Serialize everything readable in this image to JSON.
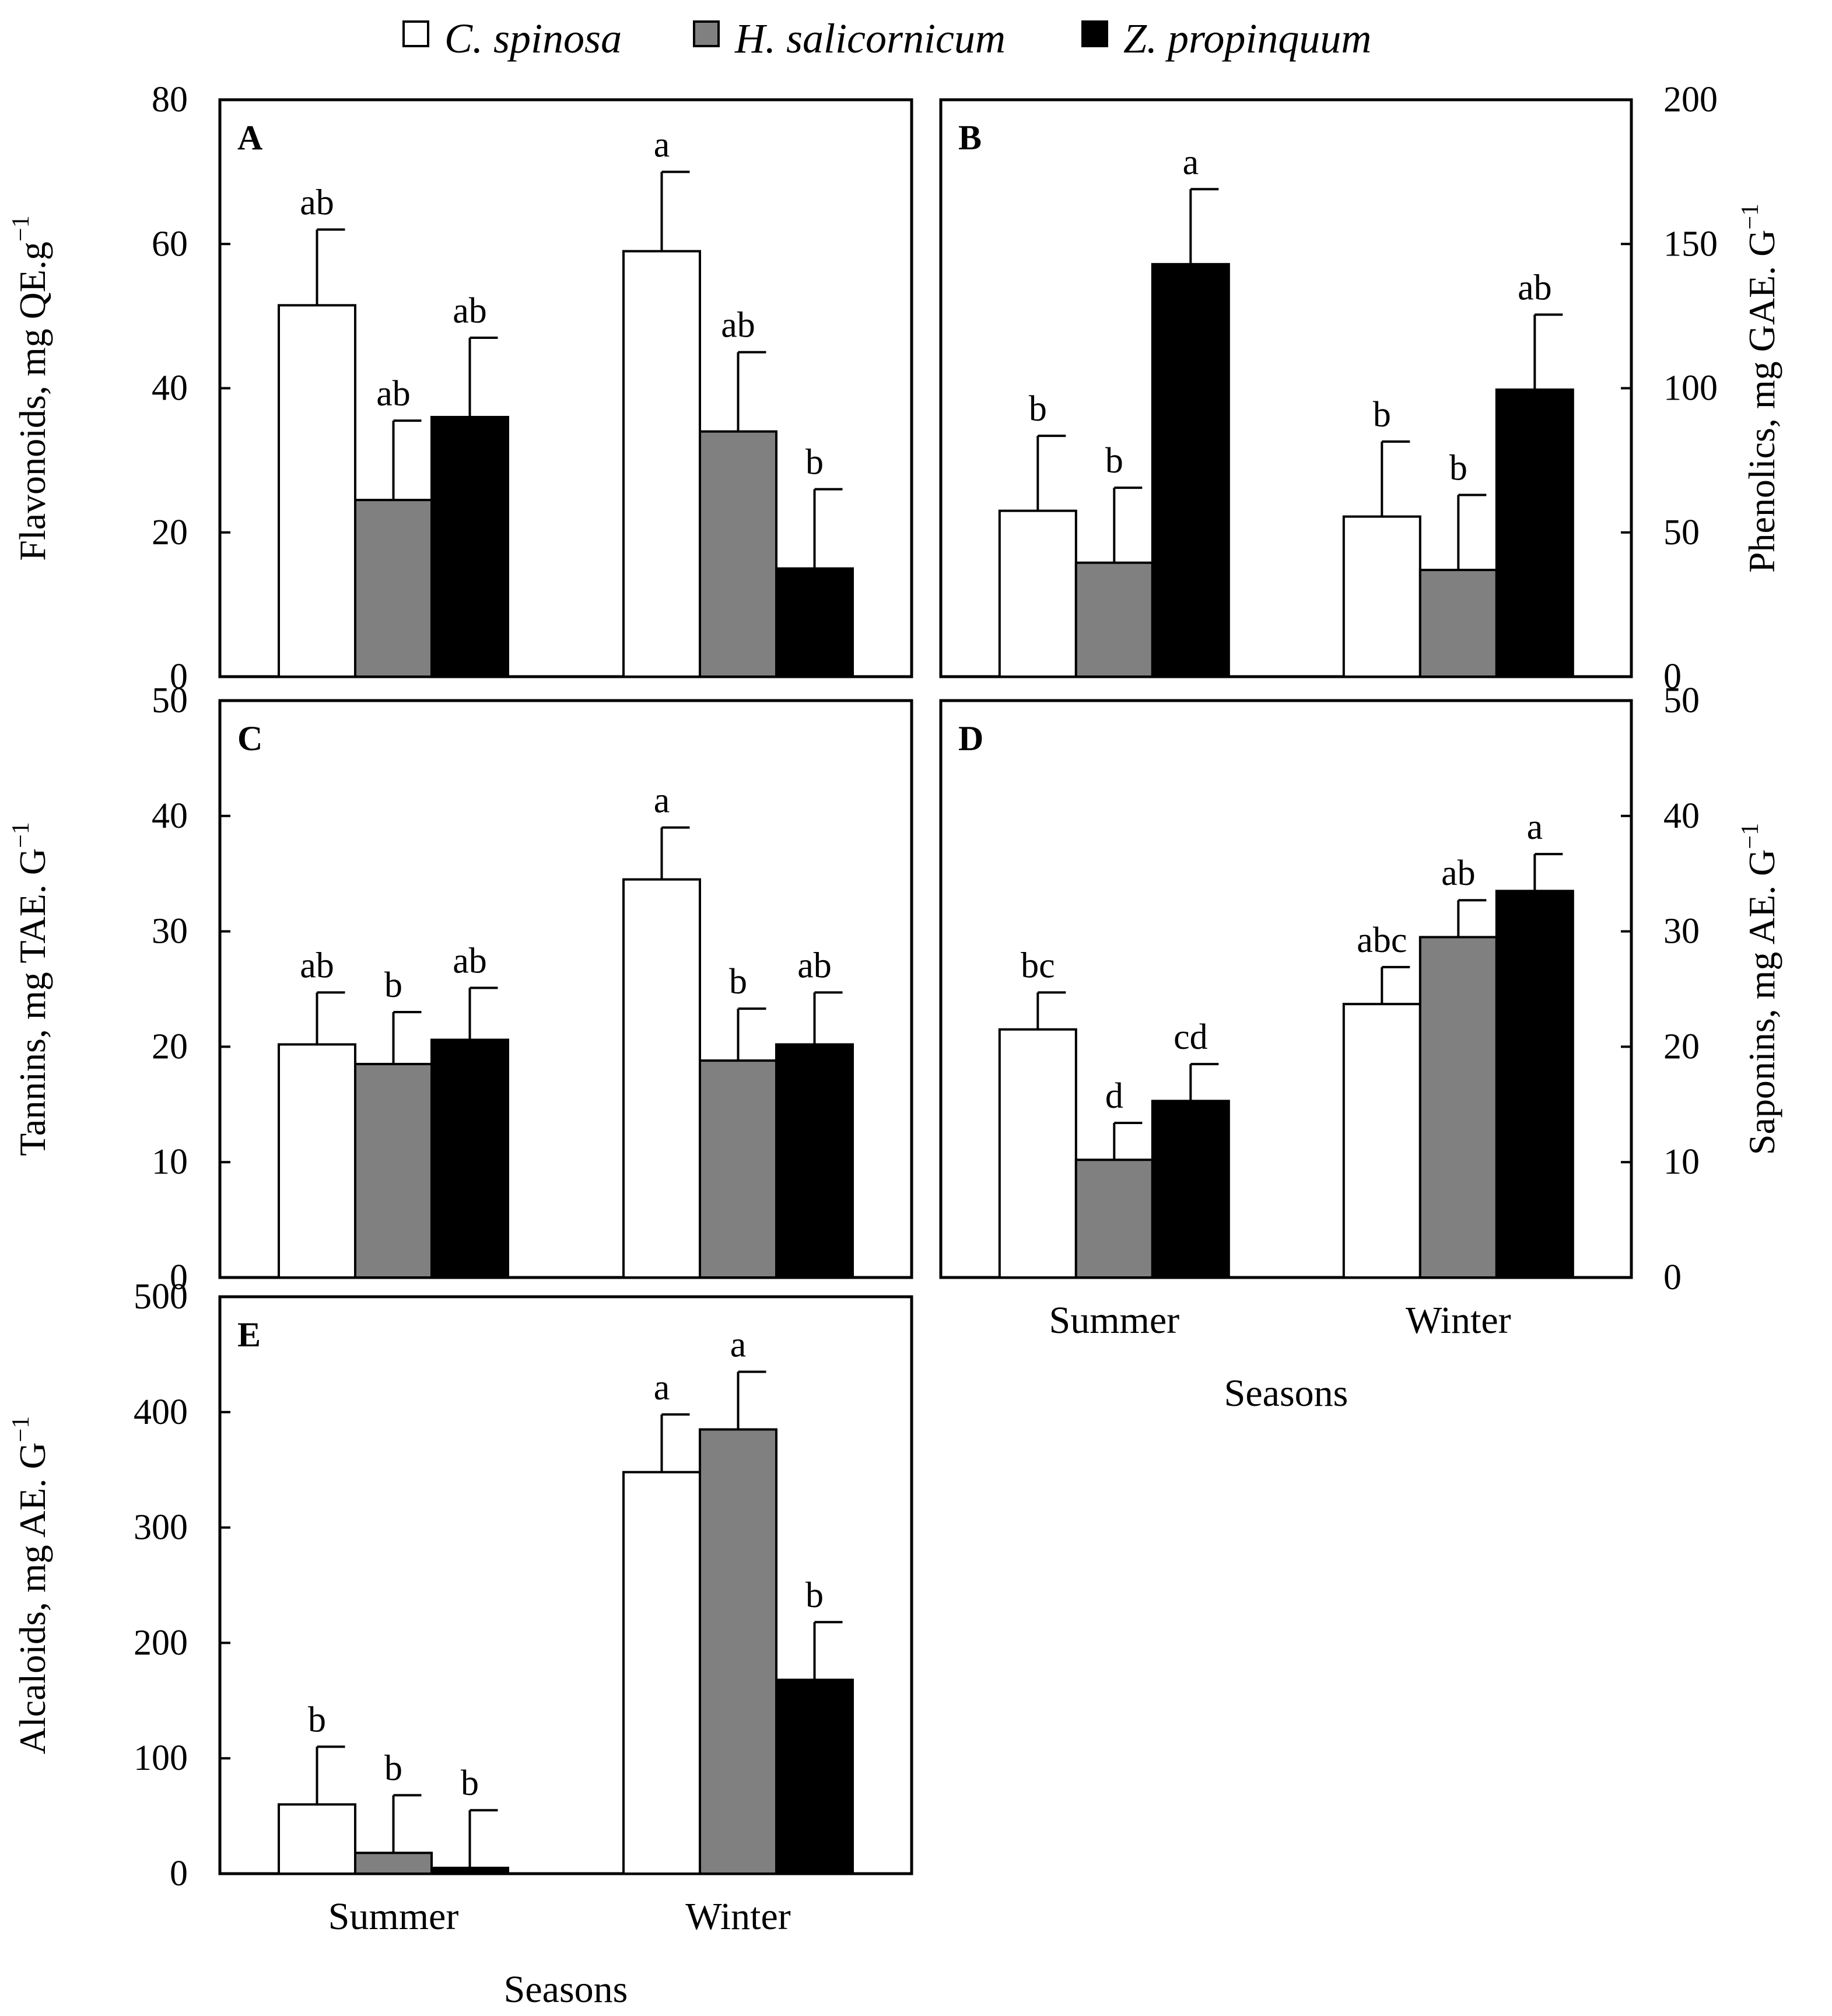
{
  "legend": [
    {
      "name": "C. spinosa",
      "color": "#ffffff"
    },
    {
      "name": "H. salicornicum",
      "color": "#808080"
    },
    {
      "name": "Z. propinquum",
      "color": "#000000"
    }
  ],
  "chart_data": [
    {
      "panel": "A",
      "type": "bar",
      "ylabel": "Flavonoids, mg QE.g",
      "ylabel_sup": "−1",
      "axis_side": "left",
      "ylim": [
        0,
        80
      ],
      "yticks": [
        "0",
        "20",
        "40",
        "60",
        "80"
      ],
      "categories": [
        "Summer",
        "Winter"
      ],
      "series": [
        {
          "name": "C. spinosa",
          "values": [
            51.5,
            59
          ],
          "errors": [
            10.5,
            11
          ],
          "letters": [
            "ab",
            "a"
          ]
        },
        {
          "name": "H. salicornicum",
          "values": [
            24.5,
            34
          ],
          "errors": [
            11,
            11
          ],
          "letters": [
            "ab",
            "ab"
          ]
        },
        {
          "name": "Z. propinquum",
          "values": [
            36,
            15
          ],
          "errors": [
            11,
            11
          ],
          "letters": [
            "ab",
            "b"
          ]
        }
      ]
    },
    {
      "panel": "B",
      "type": "bar",
      "ylabel": "Phenolics, mg GAE. G",
      "ylabel_sup": "−1",
      "axis_side": "right",
      "ylim": [
        0,
        200
      ],
      "yticks": [
        "0",
        "50",
        "100",
        "150",
        "200"
      ],
      "categories": [
        "Summer",
        "Winter"
      ],
      "series": [
        {
          "name": "C. spinosa",
          "values": [
            57.5,
            55.5
          ],
          "errors": [
            26,
            26
          ],
          "letters": [
            "b",
            "b"
          ]
        },
        {
          "name": "H. salicornicum",
          "values": [
            39.5,
            37
          ],
          "errors": [
            26,
            26
          ],
          "letters": [
            "b",
            "b"
          ]
        },
        {
          "name": "Z. propinquum",
          "values": [
            143,
            99.5
          ],
          "errors": [
            26,
            26
          ],
          "letters": [
            "a",
            "ab"
          ]
        }
      ]
    },
    {
      "panel": "C",
      "type": "bar",
      "ylabel": "Tannins, mg TAE. G",
      "ylabel_sup": "−1",
      "axis_side": "left",
      "ylim": [
        0,
        50
      ],
      "yticks": [
        "0",
        "10",
        "20",
        "30",
        "40",
        "50"
      ],
      "categories": [
        "Summer",
        "Winter"
      ],
      "series": [
        {
          "name": "C. spinosa",
          "values": [
            20.2,
            34.5
          ],
          "errors": [
            4.5,
            4.5
          ],
          "letters": [
            "ab",
            "a"
          ]
        },
        {
          "name": "H. salicornicum",
          "values": [
            18.5,
            18.8
          ],
          "errors": [
            4.5,
            4.5
          ],
          "letters": [
            "b",
            "b"
          ]
        },
        {
          "name": "Z. propinquum",
          "values": [
            20.6,
            20.2
          ],
          "errors": [
            4.5,
            4.5
          ],
          "letters": [
            "ab",
            "ab"
          ]
        }
      ]
    },
    {
      "panel": "D",
      "type": "bar",
      "ylabel": "Saponins, mg AE. G",
      "ylabel_sup": "−1",
      "axis_side": "right",
      "ylim": [
        0,
        50
      ],
      "yticks": [
        "0",
        "10",
        "20",
        "30",
        "40",
        "50"
      ],
      "categories": [
        "Summer",
        "Winter"
      ],
      "xlabel": "Seasons",
      "series": [
        {
          "name": "C. spinosa",
          "values": [
            21.5,
            23.7
          ],
          "errors": [
            3.2,
            3.2
          ],
          "letters": [
            "bc",
            "abc"
          ]
        },
        {
          "name": "H. salicornicum",
          "values": [
            10.2,
            29.5
          ],
          "errors": [
            3.2,
            3.2
          ],
          "letters": [
            "d",
            "ab"
          ]
        },
        {
          "name": "Z. propinquum",
          "values": [
            15.3,
            33.5
          ],
          "errors": [
            3.2,
            3.2
          ],
          "letters": [
            "cd",
            "a"
          ]
        }
      ]
    },
    {
      "panel": "E",
      "type": "bar",
      "ylabel": "Alcaloids, mg AE. G",
      "ylabel_sup": "−1",
      "axis_side": "left",
      "ylim": [
        0,
        500
      ],
      "yticks": [
        "0",
        "100",
        "200",
        "300",
        "400",
        "500"
      ],
      "categories": [
        "Summer",
        "Winter"
      ],
      "xlabel": "Seasons",
      "series": [
        {
          "name": "C. spinosa",
          "values": [
            60,
            348
          ],
          "errors": [
            50,
            50
          ],
          "letters": [
            "b",
            "a"
          ]
        },
        {
          "name": "H. salicornicum",
          "values": [
            18,
            385
          ],
          "errors": [
            50,
            50
          ],
          "letters": [
            "b",
            "a"
          ]
        },
        {
          "name": "Z. propinquum",
          "values": [
            5,
            168
          ],
          "errors": [
            50,
            50
          ],
          "letters": [
            "b",
            "b"
          ]
        }
      ]
    }
  ]
}
